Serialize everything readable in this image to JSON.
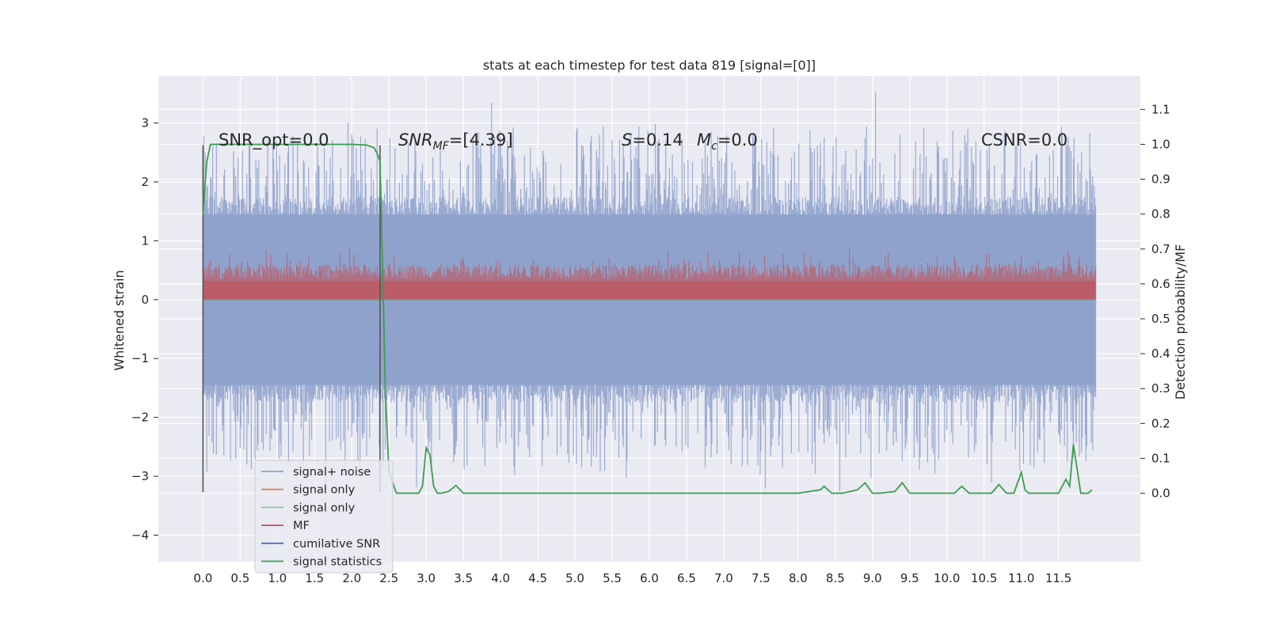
{
  "chart_data": {
    "type": "line",
    "title": "stats at each timestep for test data 819 [signal=[0]]",
    "ylabel": "Whitened strain",
    "y2label": "Detection probability/MF",
    "xlim": [
      -0.6,
      12.6
    ],
    "ylim": [
      -4.45,
      3.8
    ],
    "y2lim": [
      -0.196,
      1.196
    ],
    "x_ticks": [
      "0.0",
      "0.5",
      "1.0",
      "1.5",
      "2.0",
      "2.5",
      "3.0",
      "3.5",
      "4.0",
      "4.5",
      "5.0",
      "5.5",
      "6.0",
      "6.5",
      "7.0",
      "7.5",
      "8.0",
      "8.5",
      "9.0",
      "9.5",
      "10.0",
      "10.5",
      "11.0",
      "11.5"
    ],
    "y_ticks": [
      "3",
      "2",
      "1",
      "0",
      "−1",
      "−2",
      "−3",
      "−4"
    ],
    "y2_ticks": [
      "1.1",
      "1.0",
      "0.9",
      "0.8",
      "0.7",
      "0.6",
      "0.5",
      "0.4",
      "0.3",
      "0.2",
      "0.1",
      "0.0"
    ],
    "grid": true,
    "legend_position": "lower-left",
    "annotations": {
      "snr_opt": "SNR_opt=0.0",
      "snr_mf_sym": "SNR",
      "snr_mf_sub": "MF",
      "snr_mf_val": "=[4.39]",
      "s_sym": "S",
      "s_val": "=0.14",
      "mc_sym": "M",
      "mc_sub": "c",
      "mc_val": "=0.0",
      "csnr": "CSNR=0.0"
    },
    "markers": [
      {
        "name": "window-start",
        "x": 0.0,
        "y": [
          -3.27,
          2.62
        ]
      },
      {
        "name": "window-end",
        "x": 2.38,
        "y": [
          -3.27,
          2.62
        ]
      }
    ],
    "series": [
      {
        "name": "signal+ noise",
        "color": "#8da0cb",
        "axis": "left",
        "description": "whitened strain, approx range [-3.9, 3.4] over 0–12 s, envelope about ±1.5"
      },
      {
        "name": "signal only",
        "color": "#dd8452",
        "axis": "left",
        "values_note": "flat at 0"
      },
      {
        "name": "signal only",
        "color": "#55a868",
        "axis": "left",
        "values_note": "flat at 0"
      },
      {
        "name": "MF",
        "color": "#c44e52",
        "axis": "left",
        "description": "band between 0 and about 0.6, peaks near 0.9"
      },
      {
        "name": "cumilative SNR",
        "color": "#4c72b0",
        "axis": "left",
        "values_note": "not visible (flat)"
      },
      {
        "name": "signal statistics",
        "color": "#3a9e4f",
        "axis": "right",
        "x": [
          0.0,
          0.05,
          0.1,
          0.15,
          0.2,
          0.3,
          0.5,
          1.0,
          1.5,
          2.0,
          2.2,
          2.3,
          2.35,
          2.38,
          2.42,
          2.45,
          2.5,
          2.6,
          2.7,
          2.8,
          2.9,
          2.95,
          3.0,
          3.05,
          3.1,
          3.15,
          3.2,
          3.3,
          3.4,
          3.5,
          3.6,
          3.8,
          4.0,
          5.0,
          6.0,
          7.0,
          8.0,
          8.3,
          8.35,
          8.45,
          8.6,
          8.8,
          8.9,
          9.0,
          9.1,
          9.3,
          9.4,
          9.5,
          9.6,
          10.0,
          10.1,
          10.2,
          10.3,
          10.6,
          10.7,
          10.8,
          10.9,
          11.0,
          11.05,
          11.1,
          11.2,
          11.5,
          11.6,
          11.65,
          11.7,
          11.8,
          11.9,
          11.95
        ],
        "values": [
          0.8,
          0.95,
          1.0,
          1.0,
          1.0,
          1.0,
          1.0,
          1.0,
          1.0,
          1.0,
          0.998,
          0.99,
          0.97,
          0.95,
          0.6,
          0.3,
          0.06,
          0.0,
          0.0,
          0.0,
          0.0,
          0.02,
          0.13,
          0.11,
          0.02,
          0.0,
          0.0,
          0.005,
          0.022,
          0.0,
          0.0,
          0.0,
          0.0,
          0.0,
          0.0,
          0.0,
          0.0,
          0.01,
          0.02,
          0.0,
          0.0,
          0.01,
          0.03,
          0.0,
          0.0,
          0.005,
          0.03,
          0.0,
          0.0,
          0.0,
          0.0,
          0.02,
          0.0,
          0.0,
          0.025,
          0.0,
          0.0,
          0.06,
          0.01,
          0.0,
          0.0,
          0.0,
          0.04,
          0.02,
          0.14,
          0.0,
          0.0,
          0.01
        ]
      }
    ]
  }
}
